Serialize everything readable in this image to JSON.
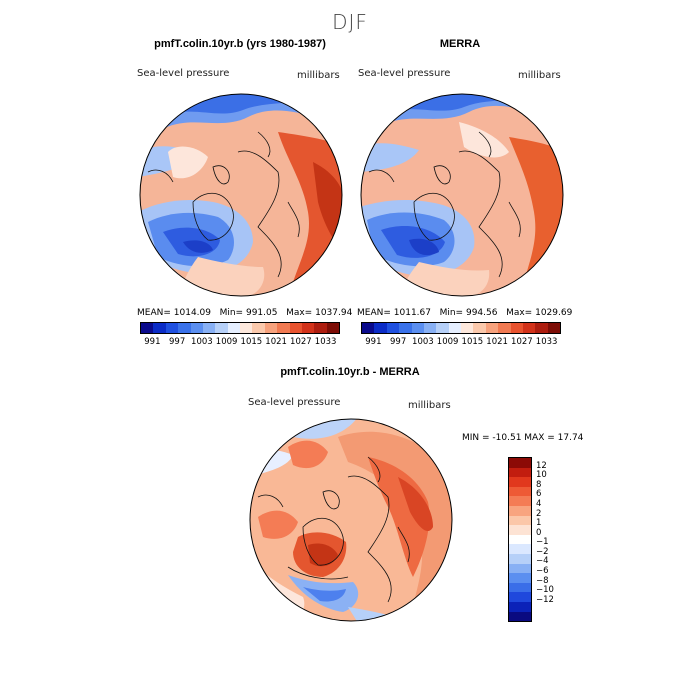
{
  "figure": {
    "title": "DJF"
  },
  "panels": [
    {
      "title": "pmfT.colin.10yr.b (yrs 1980-1987)",
      "variable": "Sea-level pressure",
      "units": "millibars",
      "stats": {
        "mean_label": "MEAN=",
        "mean": "1014.09",
        "min_label": "Min=",
        "min": "991.05",
        "max_label": "Max=",
        "max": "1037.94"
      }
    },
    {
      "title": "MERRA",
      "variable": "Sea-level pressure",
      "units": "millibars",
      "stats": {
        "mean_label": "MEAN=",
        "mean": "1011.67",
        "min_label": "Min=",
        "min": "994.56",
        "max_label": "Max=",
        "max": "1029.69"
      }
    },
    {
      "title": "pmfT.colin.10yr.b - MERRA",
      "variable": "Sea-level pressure",
      "units": "millibars",
      "stats_text": "MIN = -10.51 MAX =   17.74"
    }
  ],
  "colorbar_abs": {
    "ticks": [
      "991",
      "997",
      "1003",
      "1009",
      "1015",
      "1021",
      "1027",
      "1033"
    ],
    "colors": [
      "#0a0a8c",
      "#0b2cc7",
      "#1f50e0",
      "#3a72ea",
      "#5b8ff0",
      "#88b0f4",
      "#b6d0f8",
      "#e6efff",
      "#fde8dc",
      "#fbc9ac",
      "#f7a27d",
      "#f17a52",
      "#e8532f",
      "#d2321a",
      "#ad1d0f",
      "#7d0d06"
    ]
  },
  "colorbar_diff": {
    "ticks": [
      "12",
      "10",
      "8",
      "6",
      "4",
      "2",
      "1",
      "0",
      "−1",
      "−2",
      "−4",
      "−6",
      "−8",
      "−10",
      "−12"
    ],
    "colors": [
      "#8c0a06",
      "#c21d0f",
      "#e1381d",
      "#ee5a35",
      "#f47c55",
      "#f8a47f",
      "#fbc7a9",
      "#fde3d4",
      "#ffffff",
      "#dbe8ff",
      "#b6d0f8",
      "#88b0f4",
      "#5b8ff0",
      "#3a6ee8",
      "#1f48dc",
      "#0b22b8",
      "#0a0a80"
    ]
  }
}
